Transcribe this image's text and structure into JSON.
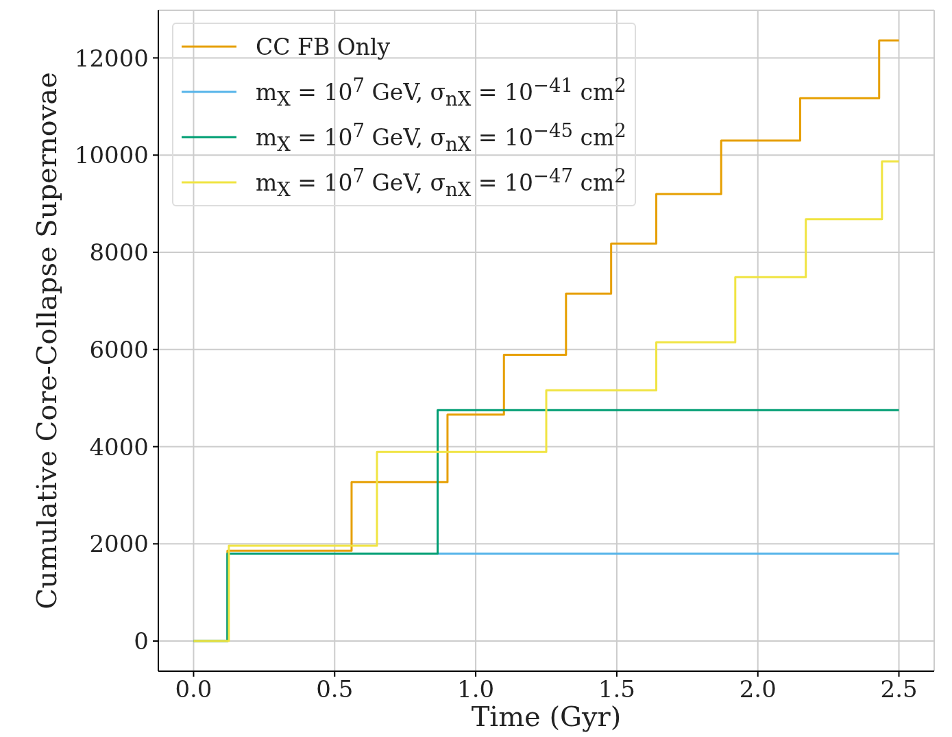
{
  "chart_data": {
    "type": "step",
    "xlabel": "Time (Gyr)",
    "ylabel": "Cumulative Core-Collapse Supernovae",
    "xlim": [
      -0.125,
      2.625
    ],
    "xticks": [
      {
        "value": 0,
        "label": "0.0"
      },
      {
        "value": 0.5,
        "label": "0.5"
      },
      {
        "value": 1,
        "label": "1.0"
      },
      {
        "value": 1.5,
        "label": "1.5"
      },
      {
        "value": 2,
        "label": "2.0"
      },
      {
        "value": 2.5,
        "label": "2.5"
      }
    ],
    "ylim": [
      -620,
      12980
    ],
    "yticks": [
      0,
      2000,
      4000,
      6000,
      8000,
      10000,
      12000
    ],
    "grid": true,
    "legend": "top left",
    "series": [
      {
        "name": "CC FB Only",
        "color": "#e69f00",
        "x": [
          0,
          0.12,
          0.56,
          0.9,
          1.1,
          1.32,
          1.48,
          1.64,
          1.87,
          2.15,
          2.43,
          2.5
        ],
        "values": [
          0,
          1860,
          3270,
          4660,
          5890,
          7150,
          8180,
          9200,
          10300,
          11170,
          12360,
          12360
        ]
      },
      {
        "name": "m$_{X}$ = 10$^{7}$ GeV, σ$_{nX}$ = 10$^{−41}$ cm$^{2}$",
        "color": "#56b4e9",
        "x": [
          0,
          0.12,
          2.5
        ],
        "values": [
          0,
          1800,
          1800
        ]
      },
      {
        "name": "m$_{X}$ = 10$^{7}$ GeV, σ$_{nX}$ = 10$^{−45}$ cm$^{2}$",
        "color": "#009e73",
        "x": [
          0,
          0.12,
          0.865,
          2.5
        ],
        "values": [
          0,
          1800,
          4750,
          4750
        ]
      },
      {
        "name": "m$_{X}$ = 10$^{7}$ GeV, σ$_{nX}$ = 10$^{−47}$ cm$^{2}$",
        "color": "#f0e442",
        "x": [
          0,
          0.125,
          0.65,
          1.25,
          1.64,
          1.92,
          2.17,
          2.44,
          2.5
        ],
        "values": [
          0,
          1960,
          3890,
          5160,
          6150,
          7490,
          8680,
          9870,
          9870
        ]
      }
    ]
  }
}
